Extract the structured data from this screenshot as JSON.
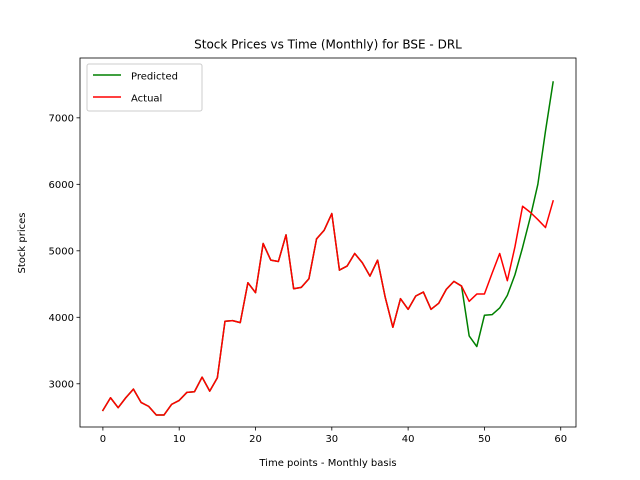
{
  "chart_data": {
    "type": "line",
    "title": "Stock Prices vs Time (Monthly) for BSE - DRL",
    "xlabel": "Time points - Monthly basis",
    "ylabel": "Stock prices",
    "xlim": [
      -3,
      62
    ],
    "ylim": [
      2350,
      7900
    ],
    "xticks": [
      0,
      10,
      20,
      30,
      40,
      50,
      60
    ],
    "yticks": [
      3000,
      4000,
      5000,
      6000,
      7000
    ],
    "grid": false,
    "legend_position": "top-left",
    "x": [
      0,
      1,
      2,
      3,
      4,
      5,
      6,
      7,
      8,
      9,
      10,
      11,
      12,
      13,
      14,
      15,
      16,
      17,
      18,
      19,
      20,
      21,
      22,
      23,
      24,
      25,
      26,
      27,
      28,
      29,
      30,
      31,
      32,
      33,
      34,
      35,
      36,
      37,
      38,
      39,
      40,
      41,
      42,
      43,
      44,
      45,
      46,
      47,
      48,
      49,
      50,
      51,
      52,
      53,
      54,
      55,
      56,
      57,
      58,
      59
    ],
    "series": [
      {
        "name": "Predicted",
        "color": "#008000",
        "values": [
          2600,
          2790,
          2640,
          2790,
          2920,
          2720,
          2660,
          2530,
          2530,
          2690,
          2750,
          2870,
          2880,
          3100,
          2890,
          3090,
          3940,
          3950,
          3920,
          4520,
          4370,
          5110,
          4860,
          4840,
          5240,
          4430,
          4450,
          4580,
          5180,
          5310,
          5560,
          4710,
          4770,
          4960,
          4820,
          4620,
          4860,
          4300,
          3850,
          4280,
          4120,
          4320,
          4380,
          4120,
          4210,
          4420,
          4540,
          4470,
          3720,
          3560,
          4030,
          4040,
          4140,
          4330,
          4640,
          5050,
          5500,
          6000,
          6800,
          7540
        ]
      },
      {
        "name": "Actual",
        "color": "#ff0000",
        "values": [
          2600,
          2790,
          2640,
          2790,
          2920,
          2720,
          2660,
          2530,
          2530,
          2690,
          2750,
          2870,
          2880,
          3100,
          2890,
          3090,
          3940,
          3950,
          3920,
          4520,
          4370,
          5110,
          4860,
          4840,
          5240,
          4430,
          4450,
          4580,
          5180,
          5310,
          5560,
          4710,
          4770,
          4960,
          4820,
          4620,
          4860,
          4300,
          3850,
          4280,
          4120,
          4320,
          4380,
          4120,
          4210,
          4420,
          4540,
          4470,
          4240,
          4350,
          4350,
          4660,
          4960,
          4550,
          5060,
          5670,
          5580,
          5470,
          5350,
          5750
        ]
      }
    ]
  }
}
